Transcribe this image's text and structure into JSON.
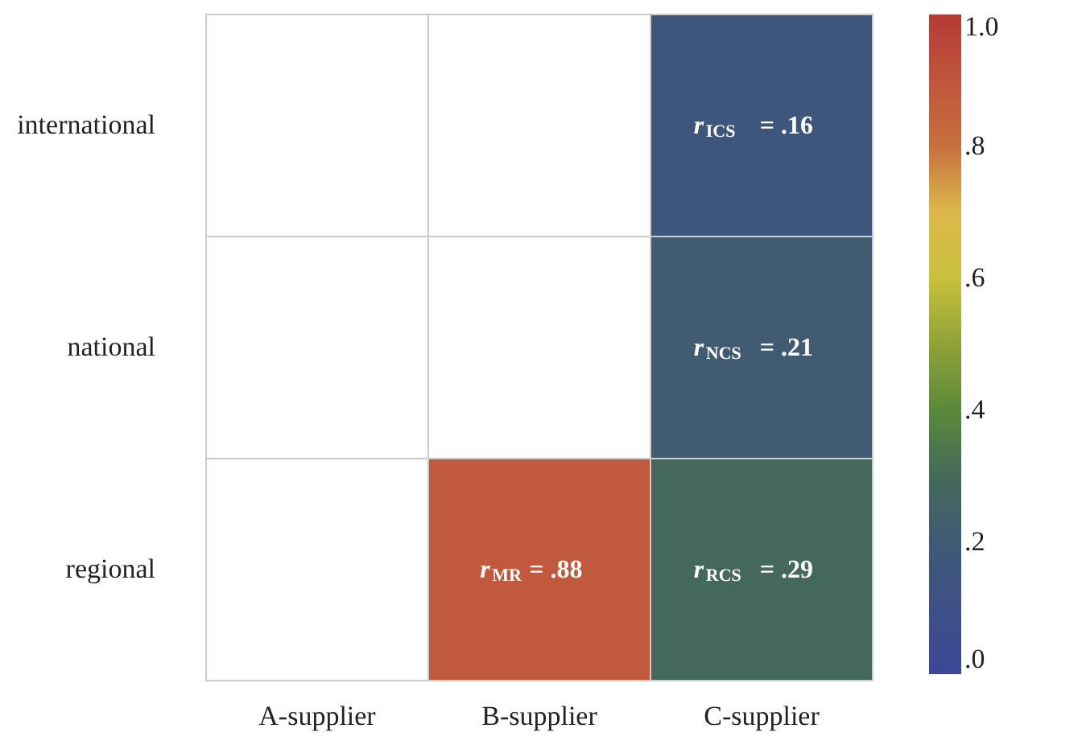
{
  "chart_data": {
    "type": "heatmap",
    "categories": [
      "A-supplier",
      "B-supplier",
      "C-supplier"
    ],
    "y_categories": [
      "international",
      "national",
      "regional"
    ],
    "cells": [
      [
        null,
        null,
        0.16
      ],
      [
        null,
        null,
        0.21
      ],
      [
        null,
        0.88,
        0.29
      ]
    ],
    "cell_labels": [
      [
        null,
        null,
        "r$_{ICS}$ = .16"
      ],
      [
        null,
        null,
        "r$_{NCS}$ = .21"
      ],
      [
        null,
        "r$_{MR}$ = .88",
        "r$_{RCS}$ = .29"
      ]
    ],
    "clim": [
      0,
      1
    ],
    "cticks": [
      {
        "value": 0,
        "label": ".0"
      },
      {
        "value": 0.2,
        "label": ".2"
      },
      {
        "value": 0.4,
        "label": ".4"
      },
      {
        "value": 0.6,
        "label": ".6"
      },
      {
        "value": 0.8,
        "label": ".8"
      },
      {
        "value": 1,
        "label": "1.0"
      }
    ]
  }
}
